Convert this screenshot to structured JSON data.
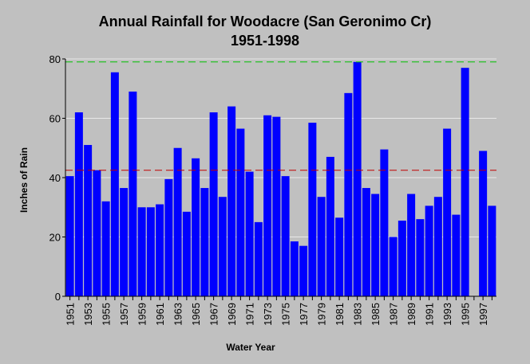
{
  "chart_data": {
    "type": "bar",
    "title": "Annual Rainfall for Woodacre (San Geronimo Cr)",
    "subtitle": "1951-1998",
    "xlabel": "Water Year",
    "ylabel": "Inches of Rain",
    "ylim": [
      0,
      80
    ],
    "yticks": [
      "0",
      "20",
      "40",
      "60",
      "80"
    ],
    "grid": true,
    "categories": [
      "1951",
      "1952",
      "1953",
      "1954",
      "1955",
      "1956",
      "1957",
      "1958",
      "1959",
      "1960",
      "1961",
      "1962",
      "1963",
      "1964",
      "1965",
      "1966",
      "1967",
      "1968",
      "1969",
      "1970",
      "1971",
      "1972",
      "1973",
      "1974",
      "1975",
      "1976",
      "1977",
      "1978",
      "1979",
      "1980",
      "1981",
      "1982",
      "1983",
      "1984",
      "1985",
      "1986",
      "1987",
      "1988",
      "1989",
      "1990",
      "1991",
      "1992",
      "1993",
      "1994",
      "1995",
      "1996",
      "1997",
      "1998"
    ],
    "xtick_labels": [
      "1951",
      "1953",
      "1955",
      "1957",
      "1959",
      "1961",
      "1963",
      "1965",
      "1967",
      "1969",
      "1971",
      "1973",
      "1975",
      "1977",
      "1979",
      "1981",
      "1983",
      "1985",
      "1987",
      "1989",
      "1991",
      "1993",
      "1995",
      "1997"
    ],
    "values": [
      40.5,
      62,
      51,
      42.5,
      32,
      75.5,
      36.5,
      69,
      30,
      30,
      31,
      39.5,
      50,
      28.5,
      46.5,
      36.5,
      62,
      33.5,
      64,
      56.5,
      42,
      25,
      61,
      60.5,
      40.5,
      18.5,
      17,
      58.5,
      33.5,
      47,
      26.5,
      68.5,
      79,
      36.5,
      34.5,
      49.5,
      20,
      25.5,
      34.5,
      26,
      30.5,
      33.5,
      56.5,
      27.5,
      77,
      null,
      49,
      30.5
    ],
    "reference_lines": [
      {
        "value": 79,
        "color": "#00c000"
      },
      {
        "value": 42.5,
        "color": "#c00000"
      }
    ],
    "colors": {
      "bar": "#0000ff",
      "plot_background": "#c0c0c0",
      "gridline": "#e8e8e8",
      "axis": "#000000"
    }
  }
}
